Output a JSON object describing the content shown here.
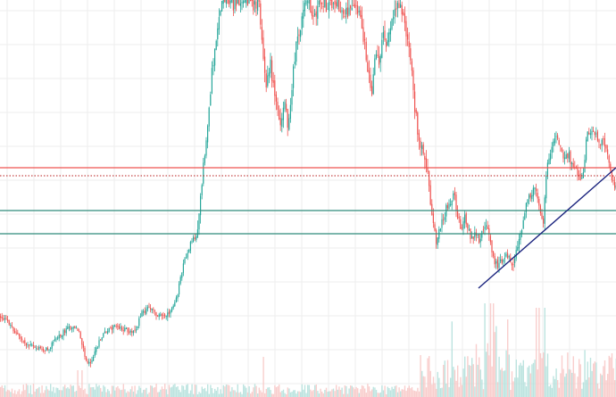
{
  "chart_data": {
    "type": "candlestick",
    "title": "",
    "xlabel": "",
    "ylabel": "",
    "grid": true,
    "ylim": [
      0,
      445
    ],
    "colors": {
      "up": "#26a69a",
      "down": "#ef5350",
      "volume_up": "#b2dfdb",
      "volume_down": "#f8c5c4",
      "grid": "#eeeeee",
      "resistance_line": "#ef5350",
      "dotted_line": "#b71c1c",
      "support_line": "#2e8b7a",
      "trendline": "#1a237e"
    },
    "price_path": [
      [
        0,
        355
      ],
      [
        10,
        362
      ],
      [
        18,
        375
      ],
      [
        28,
        385
      ],
      [
        40,
        390
      ],
      [
        52,
        392
      ],
      [
        62,
        380
      ],
      [
        72,
        370
      ],
      [
        82,
        365
      ],
      [
        88,
        372
      ],
      [
        93,
        392
      ],
      [
        98,
        410
      ],
      [
        104,
        400
      ],
      [
        112,
        380
      ],
      [
        120,
        370
      ],
      [
        130,
        365
      ],
      [
        140,
        370
      ],
      [
        150,
        372
      ],
      [
        158,
        352
      ],
      [
        166,
        345
      ],
      [
        174,
        352
      ],
      [
        182,
        355
      ],
      [
        190,
        348
      ],
      [
        198,
        330
      ],
      [
        206,
        292
      ],
      [
        214,
        270
      ],
      [
        220,
        262
      ],
      [
        224,
        225
      ],
      [
        228,
        180
      ],
      [
        232,
        140
      ],
      [
        236,
        90
      ],
      [
        240,
        55
      ],
      [
        244,
        20
      ],
      [
        248,
        5
      ],
      [
        252,
        0
      ],
      [
        258,
        2
      ],
      [
        268,
        0
      ],
      [
        280,
        0
      ],
      [
        290,
        5
      ],
      [
        294,
        60
      ],
      [
        298,
        100
      ],
      [
        302,
        70
      ],
      [
        306,
        100
      ],
      [
        310,
        120
      ],
      [
        314,
        145
      ],
      [
        318,
        110
      ],
      [
        322,
        140
      ],
      [
        326,
        100
      ],
      [
        330,
        60
      ],
      [
        334,
        40
      ],
      [
        338,
        20
      ],
      [
        342,
        0
      ],
      [
        346,
        5
      ],
      [
        350,
        20
      ],
      [
        355,
        10
      ],
      [
        360,
        0
      ],
      [
        365,
        5
      ],
      [
        372,
        0
      ],
      [
        380,
        10
      ],
      [
        390,
        15
      ],
      [
        398,
        10
      ],
      [
        404,
        25
      ],
      [
        408,
        50
      ],
      [
        412,
        80
      ],
      [
        416,
        100
      ],
      [
        420,
        60
      ],
      [
        424,
        70
      ],
      [
        428,
        40
      ],
      [
        432,
        50
      ],
      [
        436,
        30
      ],
      [
        440,
        15
      ],
      [
        444,
        5
      ],
      [
        448,
        0
      ],
      [
        452,
        25
      ],
      [
        456,
        45
      ],
      [
        460,
        70
      ],
      [
        464,
        120
      ],
      [
        468,
        155
      ],
      [
        472,
        170
      ],
      [
        476,
        180
      ],
      [
        480,
        210
      ],
      [
        484,
        250
      ],
      [
        488,
        270
      ],
      [
        492,
        255
      ],
      [
        496,
        245
      ],
      [
        500,
        230
      ],
      [
        504,
        225
      ],
      [
        508,
        215
      ],
      [
        512,
        245
      ],
      [
        516,
        255
      ],
      [
        520,
        240
      ],
      [
        524,
        258
      ],
      [
        528,
        268
      ],
      [
        532,
        260
      ],
      [
        536,
        272
      ],
      [
        540,
        258
      ],
      [
        544,
        255
      ],
      [
        548,
        265
      ],
      [
        552,
        290
      ],
      [
        556,
        298
      ],
      [
        560,
        295
      ],
      [
        564,
        290
      ],
      [
        568,
        285
      ],
      [
        572,
        295
      ],
      [
        576,
        292
      ],
      [
        580,
        270
      ],
      [
        584,
        255
      ],
      [
        588,
        232
      ],
      [
        592,
        222
      ],
      [
        596,
        215
      ],
      [
        600,
        210
      ],
      [
        604,
        240
      ],
      [
        608,
        255
      ],
      [
        612,
        180
      ],
      [
        616,
        172
      ],
      [
        620,
        160
      ],
      [
        624,
        155
      ],
      [
        628,
        165
      ],
      [
        632,
        180
      ],
      [
        636,
        172
      ],
      [
        640,
        185
      ],
      [
        644,
        190
      ],
      [
        648,
        195
      ],
      [
        652,
        205
      ],
      [
        656,
        155
      ],
      [
        660,
        145
      ],
      [
        664,
        150
      ],
      [
        668,
        152
      ],
      [
        672,
        158
      ],
      [
        676,
        160
      ],
      [
        680,
        170
      ],
      [
        684,
        200
      ],
      [
        688,
        210
      ]
    ]
  }
}
